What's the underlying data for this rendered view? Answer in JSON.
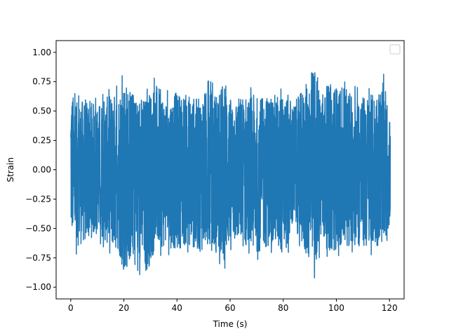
{
  "chart_data": {
    "type": "line",
    "title": "",
    "xlabel": "Time (s)",
    "ylabel": "Strain",
    "xlim": [
      -5.5,
      125.5
    ],
    "ylim": [
      -1.1,
      1.1
    ],
    "xticks": [
      0,
      20,
      40,
      60,
      80,
      100,
      120
    ],
    "yticks": [
      -1.0,
      -0.75,
      -0.5,
      -0.25,
      0.0,
      0.25,
      0.5,
      0.75,
      1.0
    ],
    "xtick_labels": [
      "0",
      "20",
      "40",
      "60",
      "80",
      "100",
      "120"
    ],
    "ytick_labels": [
      "−1.00",
      "−0.75",
      "−0.50",
      "−0.25",
      "0.00",
      "0.25",
      "0.50",
      "0.75",
      "1.00"
    ],
    "grid": false,
    "legend": {
      "placement": "top-right",
      "entries": []
    },
    "series": [
      {
        "color": "#1f77b4",
        "x_range": [
          0,
          120.3
        ],
        "envelope_time": [
          0,
          2,
          6,
          10,
          14,
          18,
          20,
          24,
          28,
          32,
          36,
          40,
          44,
          48,
          52,
          56,
          58,
          60,
          64,
          68,
          72,
          76,
          80,
          82,
          84,
          88,
          92,
          94,
          98,
          102,
          106,
          110,
          114,
          118,
          120.3
        ],
        "envelope_upper": [
          0.75,
          0.62,
          0.66,
          0.6,
          0.68,
          0.72,
          0.84,
          0.7,
          0.66,
          0.8,
          0.67,
          0.72,
          0.7,
          0.66,
          0.76,
          0.7,
          0.89,
          0.66,
          0.68,
          0.7,
          0.66,
          0.72,
          0.68,
          0.7,
          0.62,
          0.76,
          1.0,
          0.74,
          0.8,
          0.76,
          0.72,
          0.68,
          0.7,
          0.82,
          0.43
        ],
        "envelope_lower": [
          -0.58,
          -0.72,
          -0.66,
          -0.6,
          -0.7,
          -0.76,
          -0.97,
          -0.8,
          -0.99,
          -0.74,
          -0.72,
          -0.74,
          -0.7,
          -0.76,
          -0.74,
          -0.8,
          -0.84,
          -0.68,
          -0.7,
          -0.8,
          -0.74,
          -0.7,
          -0.82,
          -0.7,
          -0.5,
          -0.78,
          -0.93,
          -0.7,
          -0.76,
          -0.72,
          -0.7,
          -0.74,
          -0.72,
          -0.68,
          -0.51
        ]
      }
    ]
  }
}
